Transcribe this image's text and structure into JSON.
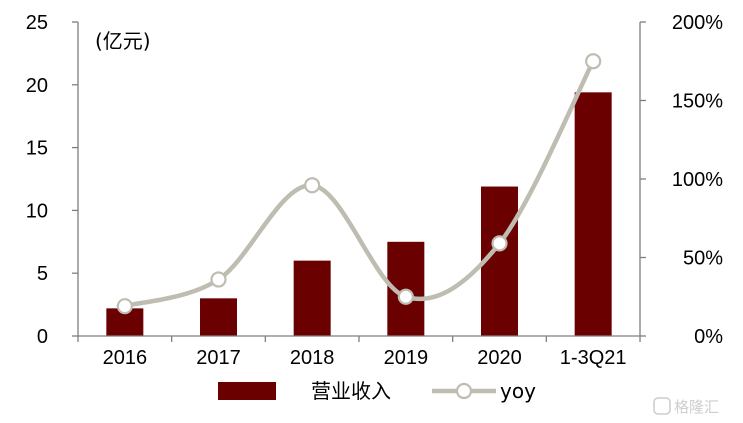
{
  "chart_data": {
    "type": "bar",
    "categories": [
      "2016",
      "2017",
      "2018",
      "2019",
      "2020",
      "1-3Q21"
    ],
    "left_axis": {
      "unit_label": "(亿元)",
      "range": [
        0,
        25
      ],
      "ticks": [
        "0",
        "5",
        "10",
        "15",
        "20",
        "25"
      ]
    },
    "right_axis": {
      "range": [
        0,
        2.0
      ],
      "ticks": [
        "0%",
        "50%",
        "100%",
        "150%",
        "200%"
      ]
    },
    "series": [
      {
        "name": "营业收入",
        "kind": "bar",
        "axis": "left",
        "values": [
          2.2,
          3.0,
          6.0,
          7.5,
          11.9,
          19.4
        ]
      },
      {
        "name": "yoy",
        "kind": "line",
        "axis": "right",
        "smooth": true,
        "values": [
          0.19,
          0.36,
          0.96,
          0.25,
          0.59,
          1.75
        ]
      }
    ],
    "colors": {
      "bar": "#6b0000",
      "line": "#bfbdb2",
      "marker_fill": "#ffffff",
      "axis": "#7f7f7f"
    },
    "legend_position": "bottom",
    "grid": false
  },
  "watermark": {
    "text": "格隆汇",
    "icon": "glh-logo-icon"
  }
}
